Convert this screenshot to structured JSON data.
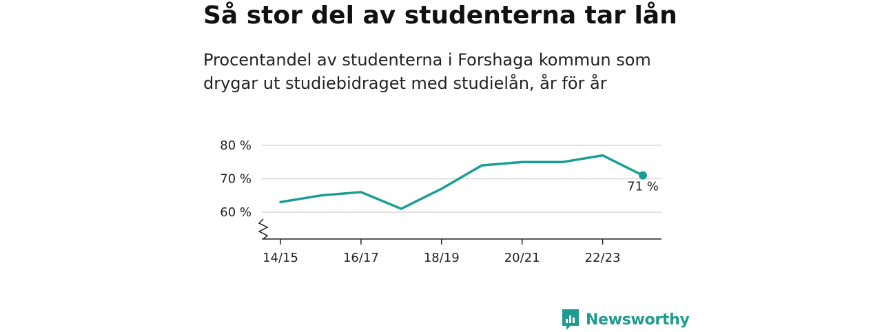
{
  "title": "Så stor del av studenterna tar lån",
  "subtitle": "Procentandel av studenterna i Forshaga kommun som drygar ut studiebidraget med studielån, år för år",
  "brand": {
    "name": "Newsworthy",
    "icon": "newsworthy-logo-icon"
  },
  "colors": {
    "line": "#1a9e92",
    "grid": "#d9d9d9",
    "axis": "#222222",
    "brand": "#1f9c8f"
  },
  "chart_data": {
    "type": "line",
    "x": [
      "14/15",
      "15/16",
      "16/17",
      "17/18",
      "18/19",
      "19/20",
      "20/21",
      "21/22",
      "22/23",
      "23/24"
    ],
    "values": [
      63,
      65,
      66,
      61,
      67,
      74,
      75,
      75,
      77,
      71
    ],
    "x_tick_labels": [
      "14/15",
      "16/17",
      "18/19",
      "20/21",
      "22/23"
    ],
    "y_ticks": [
      60,
      70,
      80
    ],
    "y_tick_labels": [
      "60 %",
      "70 %",
      "80 %"
    ],
    "ylim": [
      52,
      82
    ],
    "y_axis_break": true,
    "grid": true,
    "last_point_label": "71 %",
    "xlabel": "",
    "ylabel": ""
  }
}
